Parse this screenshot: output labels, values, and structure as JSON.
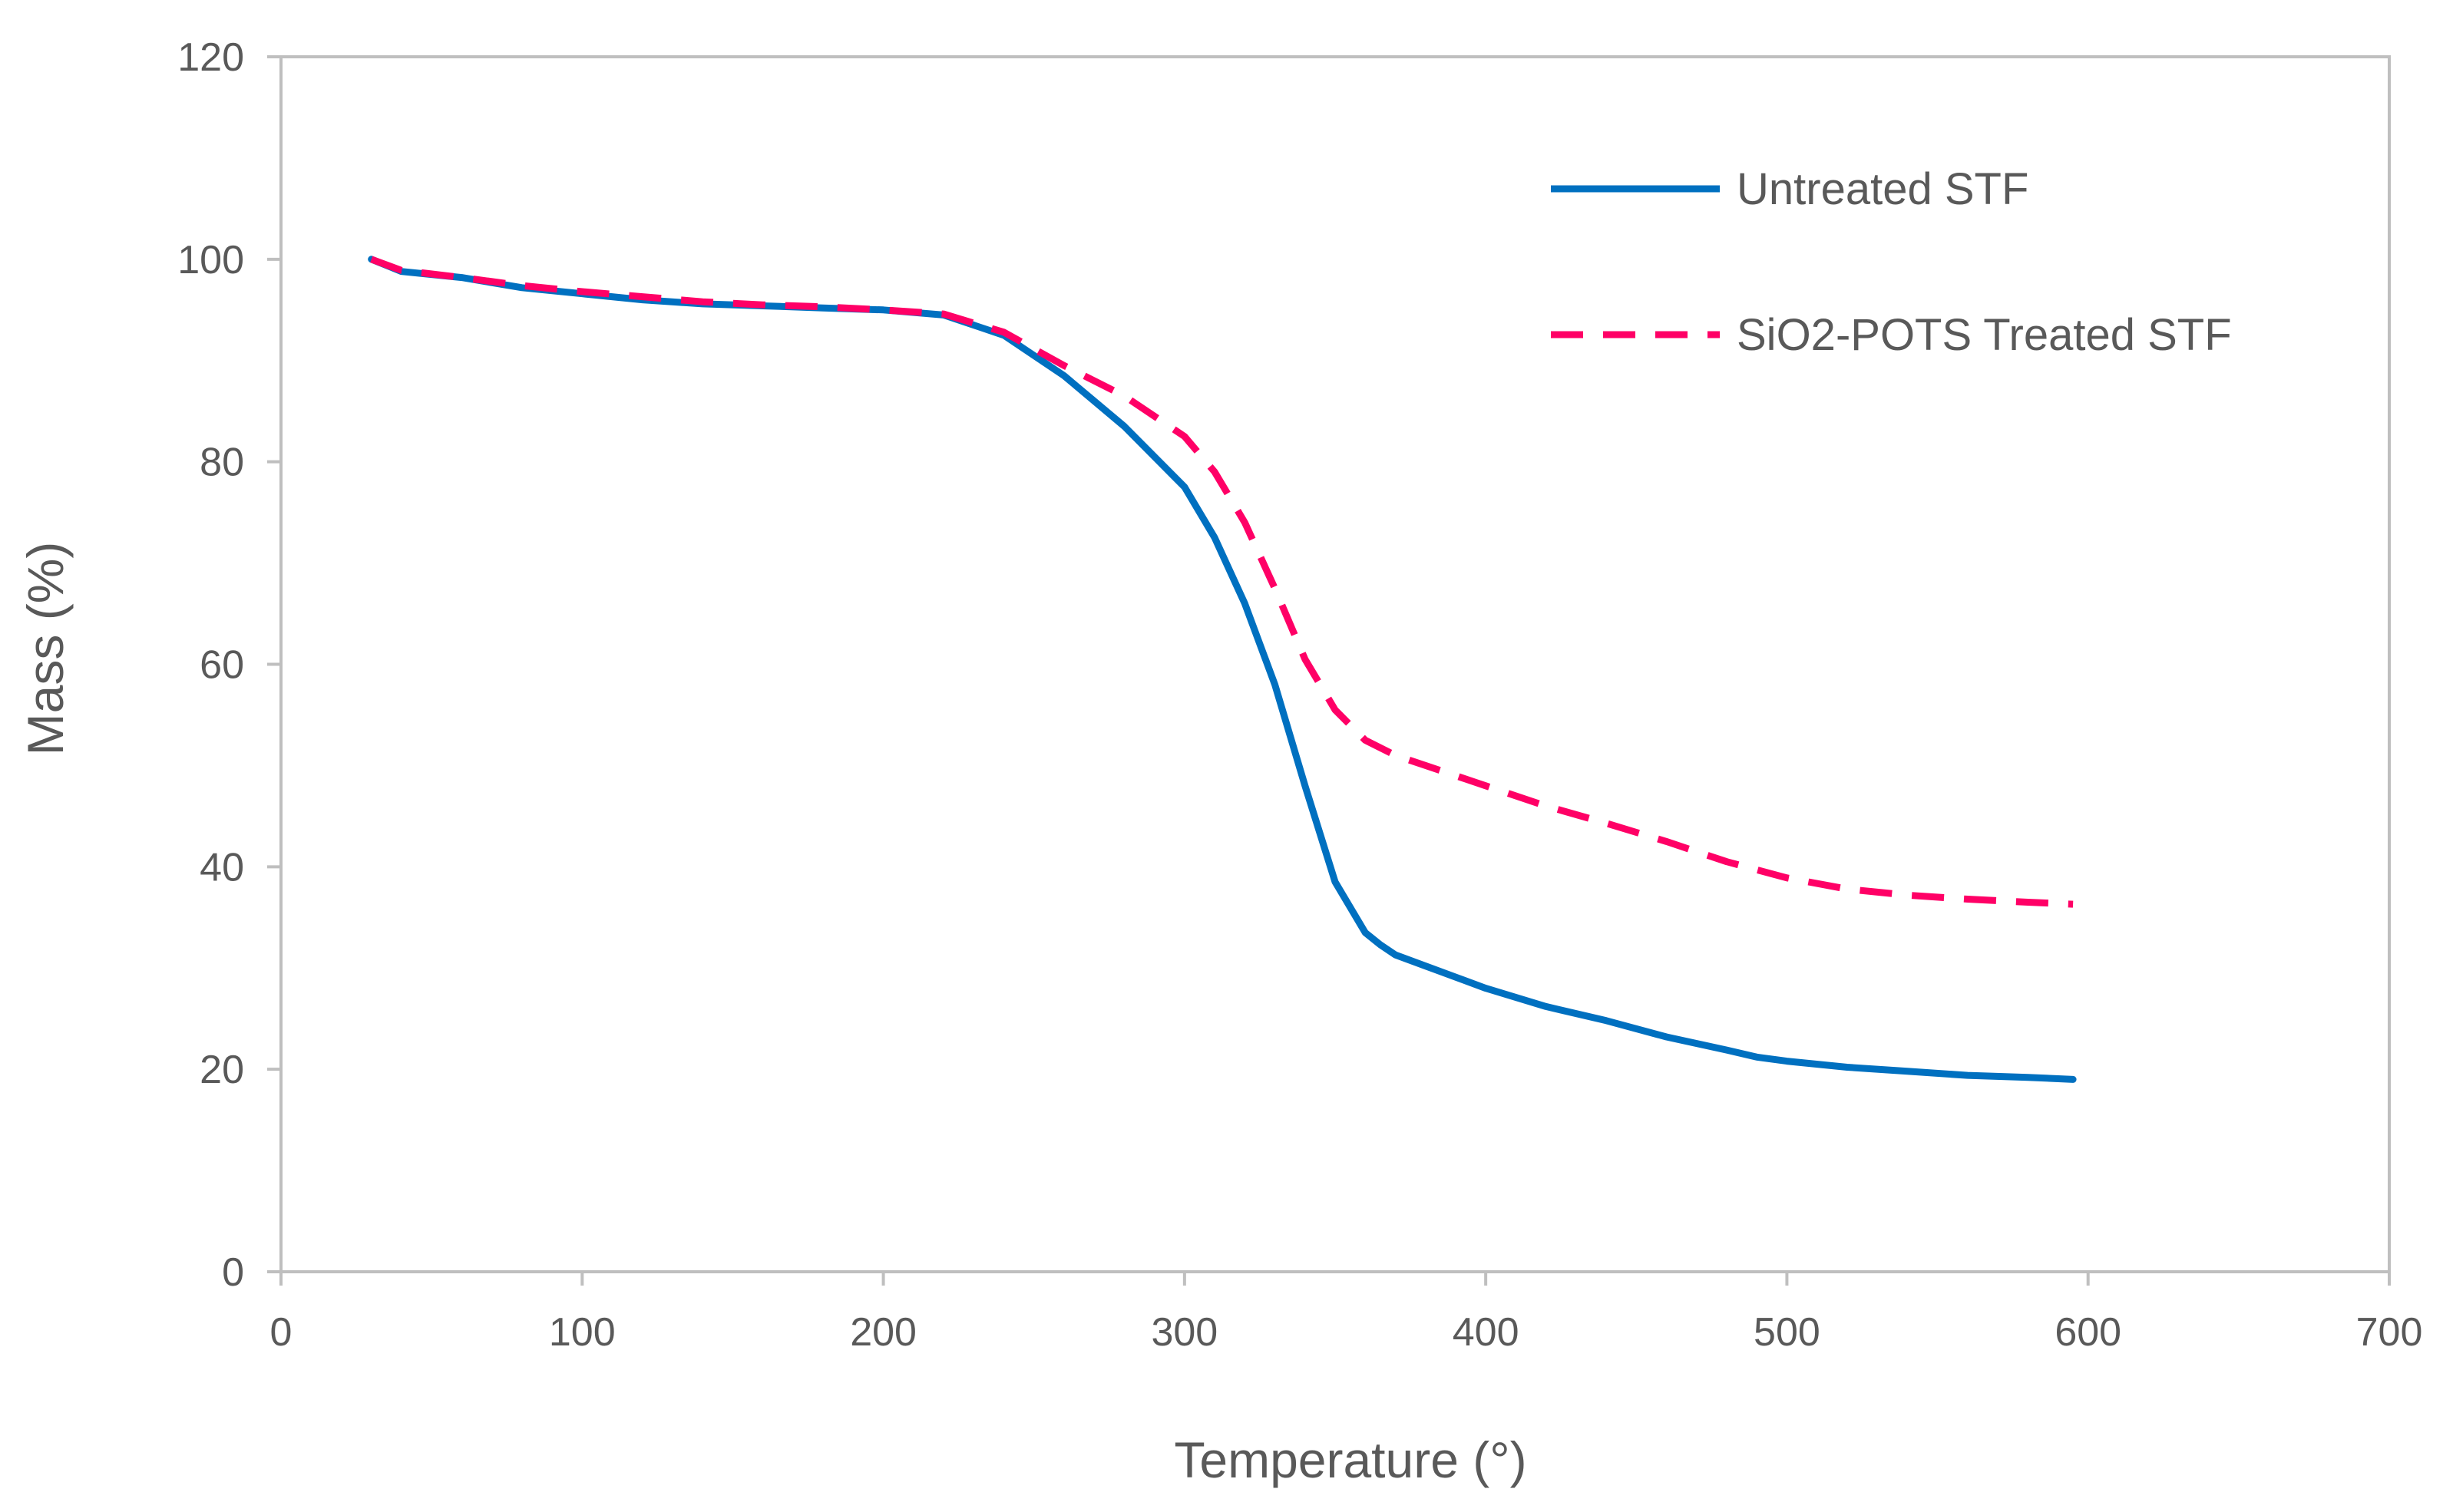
{
  "chart_data": {
    "type": "line",
    "title": "",
    "xlabel": "Temperature (°)",
    "ylabel": "Mass (%)",
    "xlim": [
      0,
      700
    ],
    "ylim": [
      0,
      120
    ],
    "xticks": [
      0,
      100,
      200,
      300,
      400,
      500,
      600,
      700
    ],
    "yticks": [
      0,
      20,
      40,
      60,
      80,
      100,
      120
    ],
    "grid": false,
    "legend_position": "top-right",
    "series": [
      {
        "name": "Untreated STF",
        "color": "#0070C0",
        "dash": "solid",
        "x": [
          30,
          40,
          60,
          80,
          100,
          120,
          140,
          160,
          180,
          200,
          220,
          240,
          260,
          280,
          300,
          310,
          320,
          330,
          340,
          350,
          360,
          365,
          370,
          380,
          400,
          420,
          440,
          460,
          480,
          490,
          500,
          520,
          540,
          560,
          580,
          595
        ],
        "y": [
          100,
          98.8,
          98.2,
          97.2,
          96.6,
          96,
          95.6,
          95.4,
          95.2,
          95,
          94.5,
          92.5,
          88.5,
          83.5,
          77.5,
          72.5,
          66,
          58,
          48,
          38.5,
          33.5,
          32.3,
          31.3,
          30.2,
          28,
          26.2,
          24.8,
          23.2,
          21.9,
          21.2,
          20.8,
          20.2,
          19.8,
          19.4,
          19.2,
          19
        ]
      },
      {
        "name": "SiO2-POTS Treated STF",
        "color": "#FF0066",
        "dash": "dashed",
        "x": [
          30,
          40,
          60,
          80,
          100,
          120,
          140,
          160,
          180,
          200,
          220,
          240,
          260,
          280,
          300,
          310,
          320,
          330,
          340,
          350,
          360,
          370,
          380,
          400,
          420,
          440,
          460,
          480,
          500,
          520,
          540,
          560,
          580,
          595
        ],
        "y": [
          100,
          98.9,
          98.2,
          97.4,
          96.8,
          96.3,
          95.8,
          95.5,
          95.3,
          95,
          94.6,
          92.8,
          89.5,
          86.5,
          82.5,
          79,
          74,
          67.5,
          60.5,
          55.5,
          52.5,
          51,
          50,
          48,
          46,
          44.3,
          42.5,
          40.5,
          38.9,
          37.8,
          37.2,
          36.8,
          36.5,
          36.3
        ]
      }
    ]
  }
}
